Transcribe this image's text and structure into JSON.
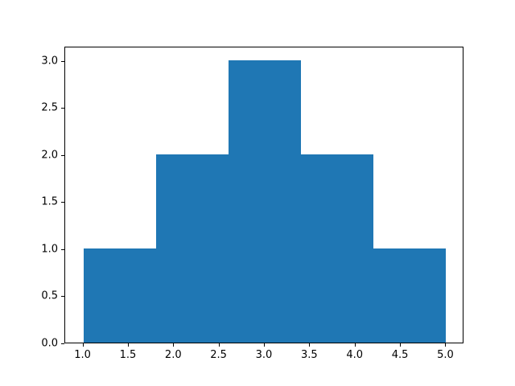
{
  "chart_data": {
    "type": "bar",
    "subtype": "histogram",
    "title": "",
    "xlabel": "",
    "ylabel": "",
    "bin_edges": [
      1.0,
      1.8,
      2.6,
      3.4,
      4.2,
      5.0
    ],
    "counts": [
      1,
      2,
      3,
      2,
      1
    ],
    "xlim": [
      0.8,
      5.2
    ],
    "ylim": [
      0,
      3.15
    ],
    "x_ticks": [
      1.0,
      1.5,
      2.0,
      2.5,
      3.0,
      3.5,
      4.0,
      4.5,
      5.0
    ],
    "x_tick_labels": [
      "1.0",
      "1.5",
      "2.0",
      "2.5",
      "3.0",
      "3.5",
      "4.0",
      "4.5",
      "5.0"
    ],
    "y_ticks": [
      0.0,
      0.5,
      1.0,
      1.5,
      2.0,
      2.5,
      3.0
    ],
    "y_tick_labels": [
      "0.0",
      "0.5",
      "1.0",
      "1.5",
      "2.0",
      "2.5",
      "3.0"
    ],
    "bar_color": "#1f77b4",
    "spine_color": "#000000",
    "grid": false,
    "legend": null
  }
}
